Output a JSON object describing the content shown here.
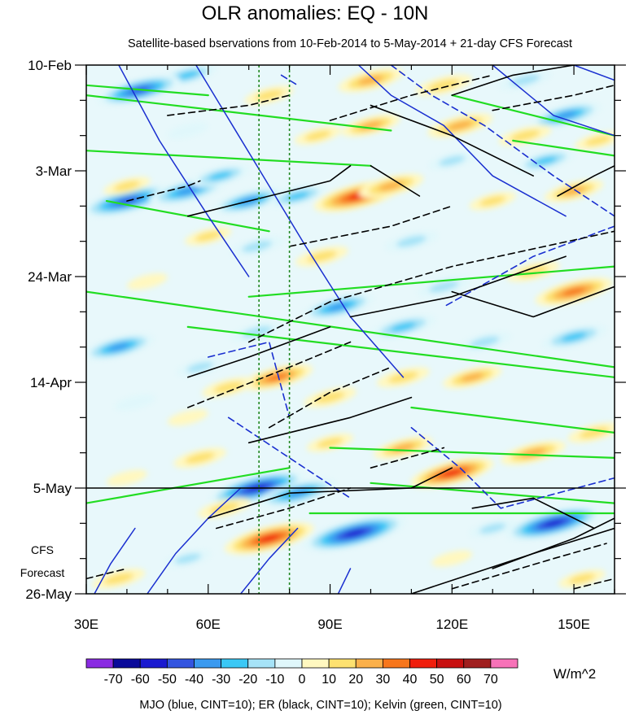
{
  "chart_data": {
    "type": "heatmap",
    "title": "OLR anomalies: EQ - 10N",
    "subtitle": "Satellite-based bservations from 10-Feb-2014 to 5-May-2014 + 21-day CFS Forecast",
    "x_axis": {
      "range": [
        30,
        160
      ],
      "ticks": [
        {
          "value": 30,
          "label": "30E"
        },
        {
          "value": 60,
          "label": "60E"
        },
        {
          "value": 90,
          "label": "90E"
        },
        {
          "value": 120,
          "label": "120E"
        },
        {
          "value": 150,
          "label": "150E"
        }
      ]
    },
    "y_axis": {
      "range_days": [
        0,
        105
      ],
      "reversed": true,
      "ticks": [
        {
          "day": 0,
          "label": "10-Feb"
        },
        {
          "day": 21,
          "label": "3-Mar"
        },
        {
          "day": 42,
          "label": "24-Mar"
        },
        {
          "day": 63,
          "label": "14-Apr"
        },
        {
          "day": 84,
          "label": "5-May"
        },
        {
          "day": 105,
          "label": "26-May"
        }
      ]
    },
    "forecast_label": [
      "CFS",
      "Forecast"
    ],
    "forecast_start_day": 84,
    "reference_longitudes": [
      72.5,
      80
    ],
    "colorbar": {
      "unit": "W/m^2",
      "levels": [
        -70,
        -60,
        -50,
        -40,
        -30,
        -20,
        -10,
        0,
        10,
        20,
        30,
        40,
        50,
        60,
        70
      ],
      "colors": [
        "#8a2be2",
        "#0a0a9a",
        "#1a1ad0",
        "#3355e0",
        "#3a9af0",
        "#3ac8f5",
        "#a6e3f7",
        "#e0f7fb",
        "#fff8c0",
        "#fde170",
        "#fbb04a",
        "#f7761b",
        "#f01e0c",
        "#c81010",
        "#a01f1f",
        "#f772b8"
      ]
    },
    "footer": "MJO (blue, CINT=10); ER (black, CINT=10); Kelvin (green, CINT=10)",
    "anomaly_centers": [
      {
        "lon": 100,
        "day": 3,
        "value": 35
      },
      {
        "lon": 118,
        "day": 4,
        "value": 28
      },
      {
        "lon": 75,
        "day": 6,
        "value": 22
      },
      {
        "lon": 55,
        "day": 2,
        "value": -30
      },
      {
        "lon": 43,
        "day": 5,
        "value": -50
      },
      {
        "lon": 138,
        "day": 3,
        "value": -25
      },
      {
        "lon": 148,
        "day": 10,
        "value": -40
      },
      {
        "lon": 122,
        "day": 12,
        "value": 35
      },
      {
        "lon": 100,
        "day": 12,
        "value": 30
      },
      {
        "lon": 87,
        "day": 14,
        "value": 20
      },
      {
        "lon": 138,
        "day": 14,
        "value": 25
      },
      {
        "lon": 55,
        "day": 13,
        "value": -15
      },
      {
        "lon": 156,
        "day": 15,
        "value": 20
      },
      {
        "lon": 97,
        "day": 26,
        "value": 55
      },
      {
        "lon": 105,
        "day": 24,
        "value": 35
      },
      {
        "lon": 150,
        "day": 25,
        "value": 30
      },
      {
        "lon": 130,
        "day": 27,
        "value": 20
      },
      {
        "lon": 40,
        "day": 27,
        "value": -55
      },
      {
        "lon": 55,
        "day": 25,
        "value": -45
      },
      {
        "lon": 70,
        "day": 27,
        "value": -40
      },
      {
        "lon": 82,
        "day": 26,
        "value": -30
      },
      {
        "lon": 63,
        "day": 22,
        "value": -30
      },
      {
        "lon": 40,
        "day": 24,
        "value": 20
      },
      {
        "lon": 120,
        "day": 19,
        "value": -20
      },
      {
        "lon": 143,
        "day": 19,
        "value": -30
      },
      {
        "lon": 60,
        "day": 34,
        "value": 20
      },
      {
        "lon": 88,
        "day": 38,
        "value": 25
      },
      {
        "lon": 72,
        "day": 36,
        "value": -25
      },
      {
        "lon": 45,
        "day": 43,
        "value": 15
      },
      {
        "lon": 110,
        "day": 35,
        "value": -25
      },
      {
        "lon": 118,
        "day": 44,
        "value": -25
      },
      {
        "lon": 140,
        "day": 41,
        "value": 25
      },
      {
        "lon": 150,
        "day": 45,
        "value": 45
      },
      {
        "lon": 92,
        "day": 48,
        "value": -40
      },
      {
        "lon": 108,
        "day": 52,
        "value": -35
      },
      {
        "lon": 38,
        "day": 56,
        "value": -40
      },
      {
        "lon": 58,
        "day": 60,
        "value": -20
      },
      {
        "lon": 72,
        "day": 53,
        "value": -25
      },
      {
        "lon": 150,
        "day": 54,
        "value": -35
      },
      {
        "lon": 128,
        "day": 55,
        "value": -25
      },
      {
        "lon": 77,
        "day": 62,
        "value": 40
      },
      {
        "lon": 90,
        "day": 66,
        "value": 25
      },
      {
        "lon": 65,
        "day": 64,
        "value": 25
      },
      {
        "lon": 55,
        "day": 70,
        "value": 15
      },
      {
        "lon": 125,
        "day": 62,
        "value": 30
      },
      {
        "lon": 108,
        "day": 62,
        "value": 25
      },
      {
        "lon": 90,
        "day": 75,
        "value": 20
      },
      {
        "lon": 58,
        "day": 78,
        "value": 25
      },
      {
        "lon": 42,
        "day": 67,
        "value": -15
      },
      {
        "lon": 120,
        "day": 81,
        "value": 50
      },
      {
        "lon": 140,
        "day": 77,
        "value": 35
      },
      {
        "lon": 108,
        "day": 76,
        "value": 30
      },
      {
        "lon": 155,
        "day": 73,
        "value": 25
      },
      {
        "lon": 40,
        "day": 82,
        "value": 15
      },
      {
        "lon": 72,
        "day": 84,
        "value": -60
      },
      {
        "lon": 82,
        "day": 85,
        "value": -45
      },
      {
        "lon": 96,
        "day": 93,
        "value": -65
      },
      {
        "lon": 75,
        "day": 94,
        "value": 55
      },
      {
        "lon": 64,
        "day": 88,
        "value": 25
      },
      {
        "lon": 145,
        "day": 91,
        "value": -60
      },
      {
        "lon": 130,
        "day": 92,
        "value": -20
      },
      {
        "lon": 38,
        "day": 102,
        "value": 25
      },
      {
        "lon": 152,
        "day": 102,
        "value": 20
      },
      {
        "lon": 120,
        "day": 98,
        "value": 15
      },
      {
        "lon": 55,
        "day": 98,
        "value": -20
      }
    ],
    "lines": {
      "kelvin_green": [
        [
          [
            30,
            6
          ],
          [
            105,
            13
          ]
        ],
        [
          [
            30,
            17
          ],
          [
            100,
            20
          ]
        ],
        [
          [
            35,
            27
          ],
          [
            75,
            33
          ]
        ],
        [
          [
            30,
            45
          ],
          [
            160,
            60
          ]
        ],
        [
          [
            55,
            52
          ],
          [
            160,
            62
          ]
        ],
        [
          [
            70,
            46
          ],
          [
            160,
            40
          ]
        ],
        [
          [
            110,
            68
          ],
          [
            160,
            73
          ]
        ],
        [
          [
            90,
            76
          ],
          [
            160,
            78
          ]
        ],
        [
          [
            30,
            87
          ],
          [
            80,
            80
          ]
        ],
        [
          [
            100,
            83
          ],
          [
            160,
            87
          ]
        ],
        [
          [
            85,
            89
          ],
          [
            160,
            89
          ]
        ],
        [
          [
            30,
            4
          ],
          [
            60,
            6
          ]
        ],
        [
          [
            120,
            6
          ],
          [
            160,
            14
          ]
        ],
        [
          [
            135,
            15
          ],
          [
            160,
            18
          ]
        ]
      ],
      "mjo_blue_solid": [
        [
          [
            57,
            0
          ],
          [
            66,
            12
          ],
          [
            75,
            24
          ],
          [
            84,
            36
          ],
          [
            95,
            50
          ],
          [
            108,
            62
          ]
        ],
        [
          [
            38,
            0
          ],
          [
            48,
            15
          ],
          [
            60,
            30
          ],
          [
            70,
            42
          ]
        ],
        [
          [
            97,
            0
          ],
          [
            105,
            6
          ],
          [
            118,
            12
          ],
          [
            130,
            22
          ],
          [
            148,
            30
          ]
        ],
        [
          [
            130,
            0
          ],
          [
            145,
            10
          ],
          [
            160,
            14
          ]
        ],
        [
          [
            150,
            0
          ],
          [
            160,
            3
          ]
        ],
        [
          [
            68,
            84
          ],
          [
            60,
            90
          ],
          [
            52,
            97
          ],
          [
            45,
            105
          ]
        ],
        [
          [
            42,
            92
          ],
          [
            36,
            99
          ],
          [
            32,
            105
          ]
        ],
        [
          [
            82,
            92
          ],
          [
            75,
            98
          ],
          [
            68,
            105
          ]
        ],
        [
          [
            95,
            100
          ],
          [
            92,
            105
          ]
        ]
      ],
      "mjo_blue_dashed": [
        [
          [
            105,
            0
          ],
          [
            115,
            6
          ],
          [
            128,
            12
          ],
          [
            145,
            22
          ],
          [
            160,
            30
          ]
        ],
        [
          [
            78,
            2
          ],
          [
            82,
            4
          ]
        ],
        [
          [
            160,
            32
          ],
          [
            140,
            38
          ],
          [
            118,
            48
          ]
        ],
        [
          [
            60,
            58
          ],
          [
            75,
            55
          ],
          [
            80,
            70
          ]
        ],
        [
          [
            65,
            70
          ],
          [
            80,
            78
          ],
          [
            95,
            86
          ]
        ],
        [
          [
            110,
            72
          ],
          [
            122,
            80
          ],
          [
            132,
            88
          ],
          [
            160,
            82
          ]
        ]
      ],
      "er_black_solid": [
        [
          [
            100,
            8
          ],
          [
            120,
            14
          ],
          [
            140,
            22
          ]
        ],
        [
          [
            55,
            30
          ],
          [
            75,
            26
          ],
          [
            90,
            23
          ],
          [
            95,
            20
          ]
        ],
        [
          [
            100,
            20
          ],
          [
            112,
            26
          ]
        ],
        [
          [
            95,
            50
          ],
          [
            120,
            46
          ],
          [
            148,
            38
          ]
        ],
        [
          [
            120,
            45
          ],
          [
            140,
            50
          ],
          [
            160,
            44
          ]
        ],
        [
          [
            70,
            75
          ],
          [
            95,
            70
          ],
          [
            110,
            66
          ]
        ],
        [
          [
            55,
            62
          ],
          [
            70,
            58
          ],
          [
            90,
            52
          ]
        ],
        [
          [
            60,
            90
          ],
          [
            80,
            85
          ],
          [
            110,
            84
          ],
          [
            120,
            80
          ]
        ],
        [
          [
            125,
            88
          ],
          [
            140,
            86
          ],
          [
            155,
            92
          ]
        ],
        [
          [
            130,
            100
          ],
          [
            150,
            94
          ],
          [
            160,
            90
          ]
        ],
        [
          [
            110,
            105
          ],
          [
            140,
            97
          ],
          [
            160,
            92
          ]
        ],
        [
          [
            120,
            6
          ],
          [
            135,
            2
          ],
          [
            150,
            0
          ]
        ],
        [
          [
            146,
            26
          ],
          [
            155,
            22
          ],
          [
            160,
            20
          ]
        ]
      ],
      "er_black_dashed": [
        [
          [
            50,
            10
          ],
          [
            70,
            8
          ],
          [
            80,
            6
          ]
        ],
        [
          [
            90,
            11
          ],
          [
            110,
            6
          ],
          [
            130,
            2
          ]
        ],
        [
          [
            130,
            9
          ],
          [
            150,
            6
          ],
          [
            160,
            4
          ]
        ],
        [
          [
            40,
            27
          ],
          [
            55,
            24
          ],
          [
            58,
            23
          ]
        ],
        [
          [
            80,
            36
          ],
          [
            105,
            32
          ],
          [
            120,
            28
          ]
        ],
        [
          [
            70,
            55
          ],
          [
            90,
            47
          ],
          [
            120,
            40
          ],
          [
            160,
            33
          ]
        ],
        [
          [
            55,
            68
          ],
          [
            80,
            60
          ],
          [
            95,
            55
          ]
        ],
        [
          [
            75,
            72
          ],
          [
            90,
            65
          ],
          [
            105,
            60
          ]
        ],
        [
          [
            62,
            92
          ],
          [
            80,
            88
          ],
          [
            95,
            84
          ]
        ],
        [
          [
            100,
            80
          ],
          [
            118,
            76
          ]
        ],
        [
          [
            120,
            104
          ],
          [
            145,
            98
          ],
          [
            158,
            95
          ]
        ],
        [
          [
            30,
            102
          ],
          [
            40,
            100
          ]
        ],
        [
          [
            150,
            104
          ],
          [
            160,
            102
          ]
        ]
      ]
    }
  }
}
